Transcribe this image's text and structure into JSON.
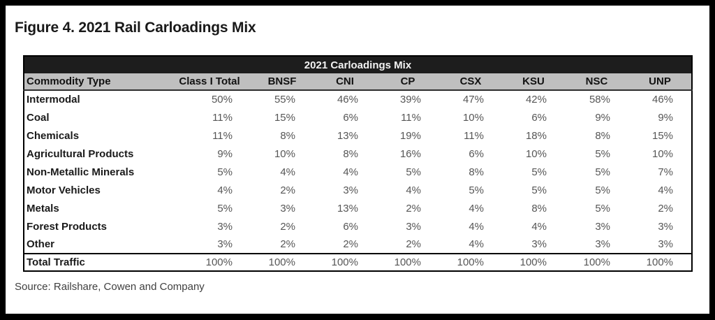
{
  "figure": {
    "title": "Figure 4. 2021 Rail Carloadings Mix",
    "source": "Source: Railshare, Cowen and Company"
  },
  "table": {
    "caption": "2021 Carloadings Mix",
    "columns": [
      "Commodity Type",
      "Class I Total",
      "BNSF",
      "CNI",
      "CP",
      "CSX",
      "KSU",
      "NSC",
      "UNP"
    ],
    "rows": [
      {
        "commodity": "Intermodal",
        "values": [
          "50%",
          "55%",
          "46%",
          "39%",
          "47%",
          "42%",
          "58%",
          "46%"
        ]
      },
      {
        "commodity": "Coal",
        "values": [
          "11%",
          "15%",
          "6%",
          "11%",
          "10%",
          "6%",
          "9%",
          "9%"
        ]
      },
      {
        "commodity": "Chemicals",
        "values": [
          "11%",
          "8%",
          "13%",
          "19%",
          "11%",
          "18%",
          "8%",
          "15%"
        ]
      },
      {
        "commodity": "Agricultural Products",
        "values": [
          "9%",
          "10%",
          "8%",
          "16%",
          "6%",
          "10%",
          "5%",
          "10%"
        ]
      },
      {
        "commodity": "Non-Metallic Minerals",
        "values": [
          "5%",
          "4%",
          "4%",
          "5%",
          "8%",
          "5%",
          "5%",
          "7%"
        ]
      },
      {
        "commodity": "Motor Vehicles",
        "values": [
          "4%",
          "2%",
          "3%",
          "4%",
          "5%",
          "5%",
          "5%",
          "4%"
        ]
      },
      {
        "commodity": "Metals",
        "values": [
          "5%",
          "3%",
          "13%",
          "2%",
          "4%",
          "8%",
          "5%",
          "2%"
        ]
      },
      {
        "commodity": "Forest Products",
        "values": [
          "3%",
          "2%",
          "6%",
          "3%",
          "4%",
          "4%",
          "3%",
          "3%"
        ]
      },
      {
        "commodity": "Other",
        "values": [
          "3%",
          "2%",
          "2%",
          "2%",
          "4%",
          "3%",
          "3%",
          "3%"
        ]
      }
    ],
    "total_row": {
      "commodity": "Total Traffic",
      "values": [
        "100%",
        "100%",
        "100%",
        "100%",
        "100%",
        "100%",
        "100%",
        "100%"
      ]
    }
  },
  "colors": {
    "frame": "#000000",
    "page_bg": "#ffffff",
    "caption_band_bg": "#1d1d1d",
    "caption_band_text": "#f2f2f2",
    "header_row_bg": "#bfbfbf",
    "label_text": "#1a1a1a",
    "value_text": "#565656"
  }
}
